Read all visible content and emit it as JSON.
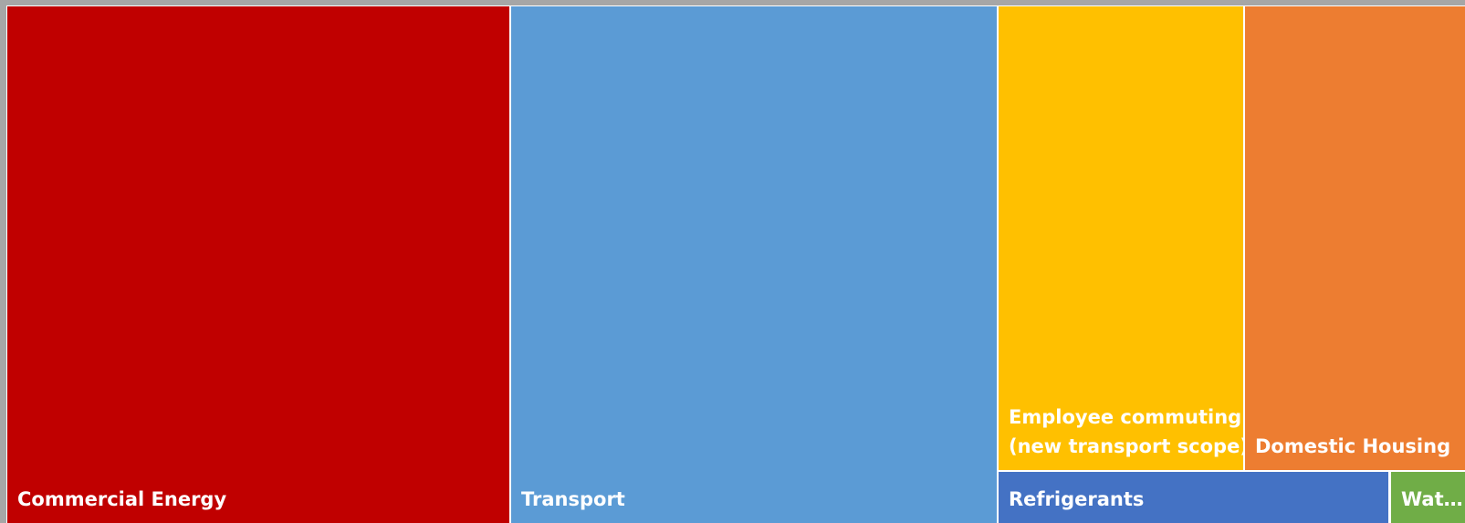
{
  "tiles": [
    {
      "label": [
        "Commercial Energy"
      ],
      "color": "#c00000"
    },
    {
      "label": [
        "Transport"
      ],
      "color": "#5b9bd5"
    },
    {
      "label": [
        "Employee commuting",
        "(new transport scope)"
      ],
      "color": "#ffc000"
    },
    {
      "label": [
        "Domestic Housing"
      ],
      "color": "#ed7d31"
    },
    {
      "label": [
        "Refrigerants"
      ],
      "color": "#4472c4"
    },
    {
      "label": [
        "Wat…"
      ],
      "color": "#70ad47"
    }
  ]
}
